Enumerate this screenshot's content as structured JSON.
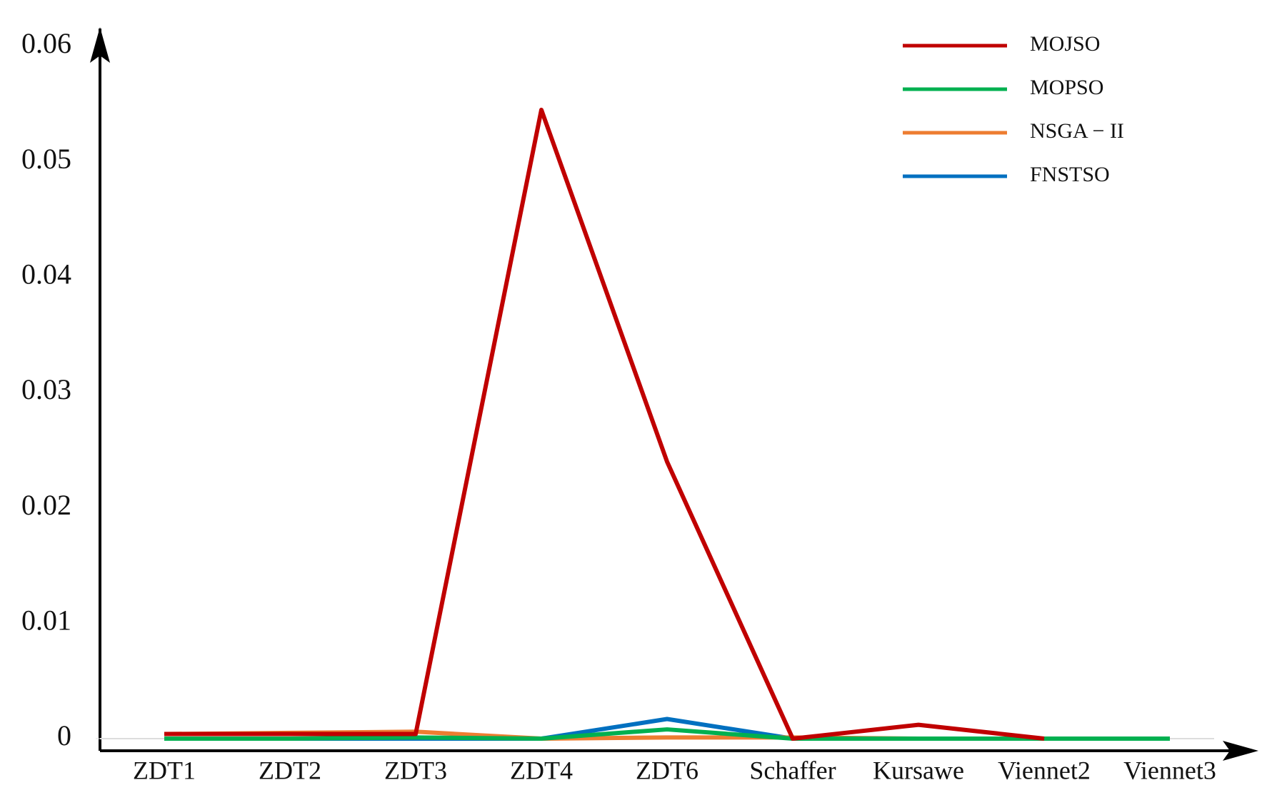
{
  "chart_data": {
    "type": "line",
    "categories": [
      "ZDT1",
      "ZDT2",
      "ZDT3",
      "ZDT4",
      "ZDT6",
      "Schaffer",
      "Kursawe",
      "Viennet2",
      "Viennet3"
    ],
    "series": [
      {
        "name": "MOJSO",
        "color": "#c00000",
        "values": [
          0.0004,
          0.0004,
          0.0004,
          0.0545,
          0.024,
          0,
          0.0012,
          0,
          null
        ]
      },
      {
        "name": "MOPSO",
        "color": "#00b050",
        "values": [
          0,
          0,
          0.0001,
          0,
          0.0008,
          0,
          0,
          0,
          0
        ]
      },
      {
        "name": "NSGA − II",
        "color": "#ed7d31",
        "values": [
          0.0004,
          0.0005,
          0.0006,
          0,
          0.0001,
          0.0001,
          0,
          0,
          0
        ]
      },
      {
        "name": "FNSTSO",
        "color": "#0070c0",
        "values": [
          0,
          0,
          0,
          0,
          0.0017,
          0,
          0,
          0,
          0
        ]
      }
    ],
    "ylim": [
      0,
      0.06
    ],
    "yticks": [
      0,
      0.01,
      0.02,
      0.03,
      0.04,
      0.05,
      0.06
    ],
    "legend": "upper right"
  }
}
